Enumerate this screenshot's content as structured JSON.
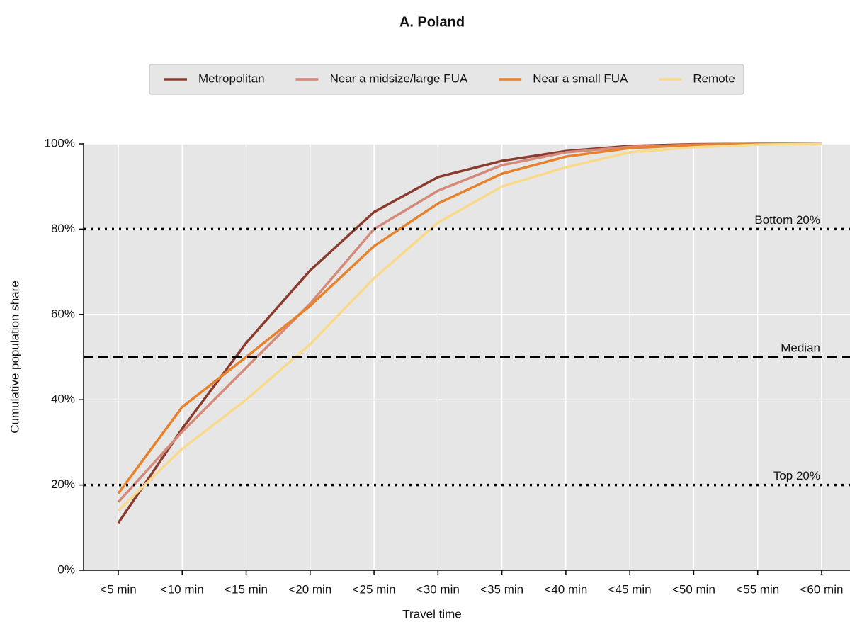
{
  "chart_data": {
    "type": "line",
    "title": "A. Poland",
    "x_label": "Travel time",
    "y_label": "Cumulative population share",
    "categories": [
      "<5 min",
      "<10 min",
      "<15 min",
      "<20 min",
      "<25 min",
      "<30 min",
      "<35 min",
      "<40 min",
      "<45 min",
      "<50 min",
      "<55 min",
      "<60 min"
    ],
    "series": [
      {
        "name": "Metropolitan",
        "color": "#8b3a2e",
        "values": [
          11.1,
          33.2,
          53.3,
          70.3,
          84,
          92.2,
          96,
          98.3,
          99.5,
          99.9,
          100,
          100
        ]
      },
      {
        "name": "Near a midsize/large FUA",
        "color": "#d4897a",
        "values": [
          16,
          32.5,
          47.5,
          62.5,
          80,
          89,
          95,
          98,
          99.3,
          99.8,
          100,
          100
        ]
      },
      {
        "name": "Near a small FUA",
        "color": "#e8822a",
        "values": [
          18,
          38.3,
          50,
          62,
          76,
          86,
          93,
          97,
          99,
          99.7,
          100,
          100
        ]
      },
      {
        "name": "Remote",
        "color": "#f9d98a",
        "values": [
          14,
          28.5,
          40,
          53,
          68.5,
          81.5,
          90,
          94.5,
          98,
          99.2,
          99.8,
          100
        ]
      }
    ],
    "ylim": [
      0,
      100
    ],
    "yticks": [
      {
        "value": 0,
        "label": "0%"
      },
      {
        "value": 20,
        "label": "20%"
      },
      {
        "value": 40,
        "label": "40%"
      },
      {
        "value": 60,
        "label": "60%"
      },
      {
        "value": 80,
        "label": "80%"
      },
      {
        "value": 100,
        "label": "100%"
      }
    ],
    "grid": true,
    "legend": "top",
    "reference_lines": [
      {
        "value": 80,
        "label": "Bottom 20%",
        "style": "dotted"
      },
      {
        "value": 50,
        "label": "Median",
        "style": "dashed"
      },
      {
        "value": 20,
        "label": "Top 20%",
        "style": "dotted"
      }
    ]
  }
}
